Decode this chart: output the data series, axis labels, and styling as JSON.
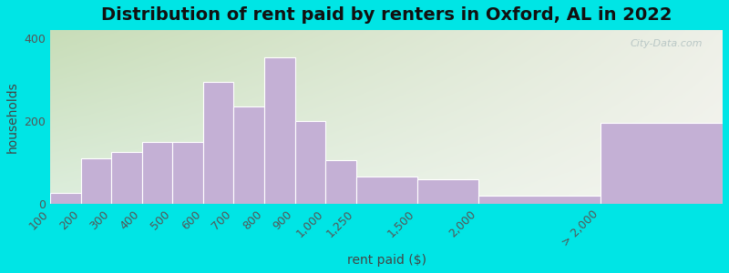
{
  "title": "Distribution of rent paid by renters in Oxford, AL in 2022",
  "xlabel": "rent paid ($)",
  "ylabel": "households",
  "bar_color": "#c4b0d5",
  "bar_edgecolor": "#ffffff",
  "background_outer": "#00e5e5",
  "background_topleft": "#c8ddb8",
  "background_topright": "#eef0e8",
  "background_bottomleft": "#ddeedd",
  "background_bottomright": "#f5f5f0",
  "ylim": [
    0,
    420
  ],
  "yticks": [
    0,
    200,
    400
  ],
  "bin_edges": [
    "100",
    "200",
    "300",
    "400",
    "500",
    "600",
    "700",
    "800",
    "900",
    "1,000",
    "1,250",
    "1,500",
    "2,000",
    "> 2,000"
  ],
  "values": [
    25,
    110,
    125,
    150,
    150,
    295,
    235,
    355,
    200,
    105,
    65,
    60,
    20,
    195
  ],
  "bin_widths": [
    1,
    1,
    1,
    1,
    1,
    1,
    1,
    1,
    1,
    1,
    2,
    2,
    4,
    4
  ],
  "title_fontsize": 14,
  "label_fontsize": 10,
  "tick_fontsize": 9
}
